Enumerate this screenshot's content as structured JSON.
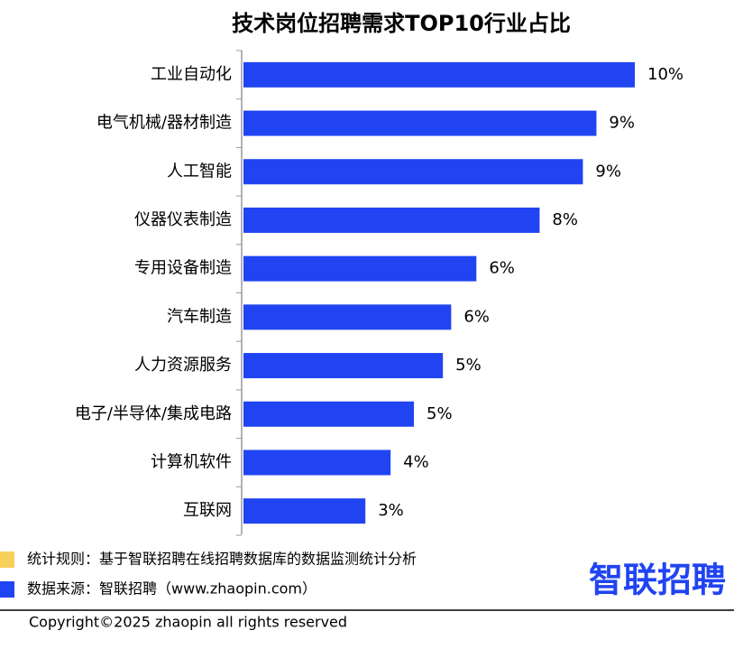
{
  "chart_data": {
    "type": "bar",
    "orientation": "horizontal",
    "title": "技术岗位招聘需求TOP10行业占比",
    "categories": [
      "工业自动化",
      "电气机械/器材制造",
      "人工智能",
      "仪器仪表制造",
      "专用设备制造",
      "汽车制造",
      "人力资源服务",
      "电子/半导体/集成电路",
      "计算机软件",
      "互联网"
    ],
    "values": [
      10.4,
      9.38,
      9.02,
      7.87,
      6.19,
      5.52,
      5.3,
      4.53,
      3.91,
      3.24
    ],
    "value_labels": [
      "10%",
      "9%",
      "9%",
      "8%",
      "6%",
      "6%",
      "5%",
      "5%",
      "4%",
      "3%"
    ],
    "color": "#2144f2"
  },
  "footer": {
    "notes": [
      {
        "text": "统计规则：基于智联招聘在线招聘数据库的数据监测统计分析",
        "color": "#f7cf5b"
      },
      {
        "text": "数据来源：智联招聘（www.zhaopin.com）",
        "color": "#2144f2"
      }
    ],
    "logo": "智联招聘",
    "copyright": "Copyright©2025 zhaopin all rights reserved"
  }
}
